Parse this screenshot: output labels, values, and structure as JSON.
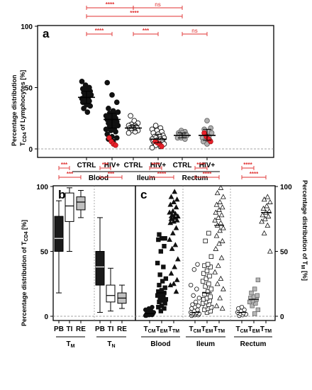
{
  "chart_data": [
    {
      "panel": "a",
      "type": "scatter",
      "ylabel_line1": "Percentage distribution",
      "ylabel_line2": "T",
      "ylabel_sub": "CD4",
      "ylabel_rest": " of Lymphocytes [%]",
      "ylim": [
        0,
        100
      ],
      "yticks": [
        "0",
        "50",
        "100"
      ],
      "groups": [
        "Blood",
        "Ileum",
        "Rectum"
      ],
      "categories": [
        "CTRL",
        "HIV+",
        "CTRL",
        "HIV+",
        "CTRL",
        "HIV+"
      ],
      "series": [
        {
          "category": "CTRL",
          "group": "Blood",
          "median": 42,
          "q1": 37,
          "q3": 47,
          "values": [
            55,
            52,
            50,
            49,
            48,
            47,
            46,
            45,
            44,
            43,
            42,
            41,
            40,
            39,
            38,
            36,
            35,
            33,
            30
          ]
        },
        {
          "category": "HIV+",
          "group": "Blood",
          "median": 24,
          "q1": 17,
          "q3": 29,
          "values": [
            54,
            44,
            38,
            33,
            31,
            30,
            29,
            28,
            27,
            26,
            25,
            24,
            23,
            22,
            21,
            20,
            19,
            18,
            17,
            16,
            15,
            14,
            12,
            10,
            9,
            8,
            6
          ],
          "highlight": [
            9,
            6,
            4,
            3
          ]
        },
        {
          "category": "CTRL",
          "group": "Ileum",
          "median": 17,
          "q1": 15,
          "q3": 19,
          "values": [
            27,
            23,
            21,
            20,
            19,
            19,
            18,
            18,
            17,
            17,
            17,
            16,
            16,
            15,
            15,
            14,
            13
          ]
        },
        {
          "category": "HIV+",
          "group": "Ileum",
          "median": 8,
          "q1": 5,
          "q3": 12,
          "values": [
            19,
            17,
            16,
            15,
            14,
            13,
            12,
            11,
            10,
            10,
            9,
            9,
            8,
            8,
            7,
            7,
            6,
            6,
            5,
            5,
            4,
            4,
            3,
            2,
            1
          ],
          "highlight": [
            6,
            5,
            4,
            2
          ]
        },
        {
          "category": "CTRL",
          "group": "Rectum",
          "median": 11,
          "q1": 9,
          "q3": 13,
          "values": [
            15,
            14,
            13,
            13,
            12,
            12,
            11,
            11,
            10,
            10,
            9,
            9,
            8
          ]
        },
        {
          "category": "HIV+",
          "group": "Rectum",
          "median": 11,
          "q1": 7,
          "q3": 16,
          "values": [
            23,
            17,
            16,
            14,
            13,
            11,
            10,
            9,
            8,
            7,
            6,
            4
          ],
          "highlight": [
            13,
            10,
            8,
            6
          ]
        }
      ],
      "significance": [
        {
          "label": "****",
          "between": "Blood CTRL vs HIV+"
        },
        {
          "label": "***",
          "between": "Ileum CTRL vs HIV+"
        },
        {
          "label": "ns",
          "between": "Rectum CTRL vs HIV+"
        },
        {
          "label": "****",
          "between": "Blood CTRL vs Ileum CTRL"
        },
        {
          "label": "ns",
          "between": "Ileum CTRL vs Rectum CTRL"
        },
        {
          "label": "****",
          "between": "Blood CTRL vs Rectum CTRL"
        }
      ],
      "colors": {
        "ctrl": "#111111",
        "hiv": "#111111",
        "highlight": "#e8202a",
        "ileum_ctrl": "#ffffff",
        "rectum": "#b0b0b0"
      }
    },
    {
      "panel": "b",
      "type": "box",
      "ylabel": "Percentage distribution of T",
      "ylabel_sub": "CD4",
      "ylabel_rest": " [%]",
      "ylim": [
        0,
        100
      ],
      "yticks": [
        "0",
        "50",
        "100"
      ],
      "categories": [
        "PB",
        "TI",
        "RE",
        "PB",
        "TI",
        "RE"
      ],
      "groups": [
        "T",
        "T"
      ],
      "group_subs": [
        "M",
        "N"
      ],
      "boxes": [
        {
          "name": "PB",
          "group": "TM",
          "min": 18,
          "q1": 50,
          "median": 60,
          "q3": 77,
          "max": 89,
          "fill": "#1a1a1a"
        },
        {
          "name": "TI",
          "group": "TM",
          "min": 50,
          "q1": 73,
          "median": 85,
          "q3": 95,
          "max": 99,
          "fill": "#ffffff"
        },
        {
          "name": "RE",
          "group": "TM",
          "min": 76,
          "q1": 82,
          "median": 88,
          "q3": 92,
          "max": 97,
          "fill": "#c0c0c0"
        },
        {
          "name": "PB",
          "group": "TN",
          "min": 3,
          "q1": 24,
          "median": 38,
          "q3": 50,
          "max": 76,
          "fill": "#1a1a1a"
        },
        {
          "name": "TI",
          "group": "TN",
          "min": 4,
          "q1": 11,
          "median": 16,
          "q3": 24,
          "max": 37,
          "fill": "#ffffff"
        },
        {
          "name": "RE",
          "group": "TN",
          "min": 6,
          "q1": 10,
          "median": 14,
          "q3": 18,
          "max": 24,
          "fill": "#c0c0c0"
        }
      ],
      "significance": [
        "***",
        "***",
        "***",
        "***"
      ]
    },
    {
      "panel": "c",
      "type": "scatter",
      "ylabel": "Percentage distribution of T",
      "ylabel_sub": "M",
      "ylabel_rest": " [%]",
      "ylim": [
        0,
        100
      ],
      "yticks": [
        "0",
        "50",
        "100"
      ],
      "groups": [
        "Blood",
        "Ileum",
        "Rectum"
      ],
      "tick_base": "T",
      "tick_subs": [
        "CM",
        "EM",
        "TM"
      ],
      "series": [
        {
          "group": "Blood",
          "name": "TCM",
          "marker": "circle-filled",
          "median": 2,
          "values": [
            0.5,
            1,
            1,
            1.5,
            2,
            2,
            2.5,
            3,
            3,
            3.5,
            4,
            5,
            6,
            7,
            0.5,
            1,
            2,
            3,
            4
          ]
        },
        {
          "group": "Blood",
          "name": "TEM",
          "marker": "square-filled",
          "median": 18,
          "values": [
            4,
            6,
            7,
            8,
            10,
            11,
            12,
            13,
            14,
            15,
            16,
            17,
            18,
            19,
            20,
            22,
            24,
            27,
            29,
            32,
            38,
            41,
            50,
            54,
            59,
            60,
            60,
            63
          ]
        },
        {
          "group": "Blood",
          "name": "TTM",
          "marker": "triangle-filled",
          "median": 76,
          "values": [
            19,
            24,
            25,
            28,
            33,
            38,
            44,
            52,
            55,
            59,
            64,
            68,
            72,
            73,
            74,
            75,
            76,
            77,
            78,
            79,
            80,
            81,
            84,
            86,
            88,
            90,
            92,
            96
          ]
        },
        {
          "group": "Ileum",
          "name": "TCM",
          "marker": "circle-open",
          "median": 3,
          "values": [
            0.5,
            1,
            1,
            1.5,
            2,
            2,
            2.5,
            3,
            3,
            4,
            5,
            6,
            7,
            8,
            9,
            11,
            14,
            16,
            21,
            24,
            36,
            40
          ]
        },
        {
          "group": "Ileum",
          "name": "TEM",
          "marker": "square-open",
          "median": 18,
          "values": [
            3,
            4,
            5,
            6,
            7,
            8,
            9,
            10,
            11,
            12,
            13,
            14,
            15,
            17,
            19,
            21,
            23,
            25,
            27,
            29,
            31,
            33,
            35,
            38,
            39,
            40,
            46,
            58,
            64
          ]
        },
        {
          "group": "Ileum",
          "name": "TTM",
          "marker": "triangle-open",
          "median": 70,
          "values": [
            6,
            8,
            14,
            21,
            25,
            29,
            34,
            39,
            45,
            52,
            56,
            58,
            62,
            66,
            68,
            70,
            72,
            74,
            76,
            78,
            80,
            82,
            84,
            86,
            88,
            92,
            95,
            99
          ]
        },
        {
          "group": "Rectum",
          "name": "TCM",
          "marker": "circle-open",
          "median": 3,
          "values": [
            0.5,
            1,
            1.5,
            2,
            2.5,
            3,
            4,
            5,
            6,
            7
          ]
        },
        {
          "group": "Rectum",
          "name": "TEM",
          "marker": "square-gray",
          "median": 13,
          "values": [
            2,
            5,
            8,
            10,
            11,
            12,
            13,
            14,
            15,
            16,
            18,
            21,
            28
          ]
        },
        {
          "group": "Rectum",
          "name": "TTM",
          "marker": "triangle-open",
          "median": 80,
          "values": [
            50,
            64,
            70,
            73,
            75,
            77,
            78,
            80,
            81,
            83,
            85,
            88,
            90,
            92
          ]
        }
      ],
      "significance": [
        "****",
        "****",
        "****",
        "****",
        "****",
        "****"
      ]
    }
  ]
}
